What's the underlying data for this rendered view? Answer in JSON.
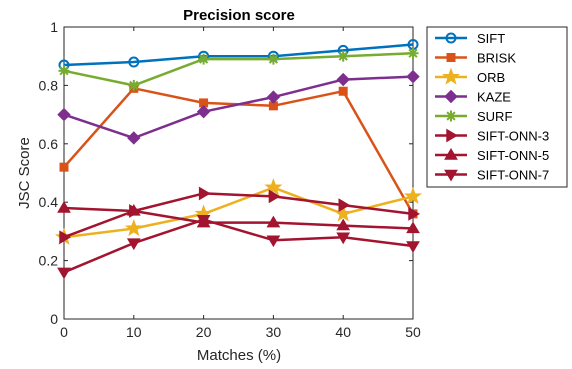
{
  "chart_data": {
    "type": "line",
    "title": "Precision score",
    "xlabel": "Matches (%)",
    "ylabel": "JSC Score",
    "x": [
      0,
      10,
      20,
      30,
      40,
      50
    ],
    "xlim": [
      0,
      50
    ],
    "ylim": [
      0,
      1
    ],
    "xticks": [
      "0",
      "10",
      "20",
      "30",
      "40",
      "50"
    ],
    "yticks": [
      "0",
      "0.2",
      "0.4",
      "0.6",
      "0.8",
      "1"
    ],
    "grid": false,
    "legend_position": "outside-top-right",
    "series": [
      {
        "name": "SIFT",
        "color": "#0072BD",
        "marker": "circle",
        "values": [
          0.87,
          0.88,
          0.9,
          0.9,
          0.92,
          0.94
        ]
      },
      {
        "name": "BRISK",
        "color": "#D95319",
        "marker": "square",
        "values": [
          0.52,
          0.79,
          0.74,
          0.73,
          0.78,
          0.36
        ]
      },
      {
        "name": "ORB",
        "color": "#EDB120",
        "marker": "pentagram",
        "values": [
          0.28,
          0.31,
          0.36,
          0.45,
          0.36,
          0.42
        ]
      },
      {
        "name": "KAZE",
        "color": "#7E2F8E",
        "marker": "diamond",
        "values": [
          0.7,
          0.62,
          0.71,
          0.76,
          0.82,
          0.83
        ]
      },
      {
        "name": "SURF",
        "color": "#77AC30",
        "marker": "asterisk",
        "values": [
          0.85,
          0.8,
          0.89,
          0.89,
          0.9,
          0.91
        ]
      },
      {
        "name": "SIFT-ONN-3",
        "color": "#A2142F",
        "marker": "triangle-right",
        "values": [
          0.28,
          0.37,
          0.43,
          0.42,
          0.39,
          0.36
        ]
      },
      {
        "name": "SIFT-ONN-5",
        "color": "#A2142F",
        "marker": "triangle-up",
        "values": [
          0.38,
          0.37,
          0.33,
          0.33,
          0.32,
          0.31
        ]
      },
      {
        "name": "SIFT-ONN-7",
        "color": "#A2142F",
        "marker": "triangle-down",
        "values": [
          0.16,
          0.26,
          0.34,
          0.27,
          0.28,
          0.25
        ]
      }
    ]
  }
}
